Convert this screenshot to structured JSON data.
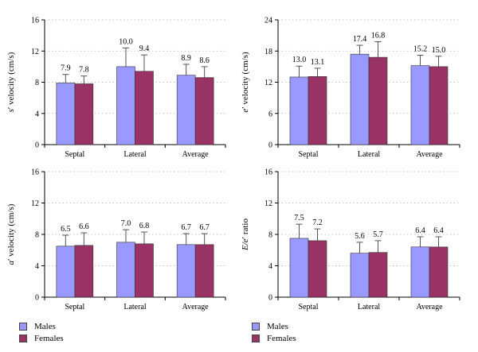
{
  "colors": {
    "males": "#9999ff",
    "females": "#993366",
    "grid": "#b0b0b0",
    "errorbar": "#555555"
  },
  "legend": [
    {
      "label": "Males",
      "color": "#9999ff"
    },
    {
      "label": "Females",
      "color": "#993366"
    }
  ],
  "chart_data": [
    {
      "type": "bar",
      "categories": [
        "Septal",
        "Lateral",
        "Average"
      ],
      "ylabel_parts": [
        "s",
        "′",
        " velocity (cm/s)"
      ],
      "ylim": [
        0,
        16
      ],
      "yticks": [
        0,
        4,
        8,
        12,
        16
      ],
      "grid": true,
      "series": [
        {
          "values": [
            7.9,
            10.0,
            8.9
          ],
          "value_labels": [
            "7.9",
            "10.0",
            "8.9"
          ],
          "errors": [
            1.1,
            2.4,
            1.4
          ]
        },
        {
          "values": [
            7.8,
            9.4,
            8.6
          ],
          "value_labels": [
            "7.8",
            "9.4",
            "8.6"
          ],
          "errors": [
            1.0,
            2.1,
            1.4
          ]
        }
      ]
    },
    {
      "type": "bar",
      "categories": [
        "Septal",
        "Lateral",
        "Average"
      ],
      "ylabel_parts": [
        "e",
        "′",
        " velocity (cm/s)"
      ],
      "ylim": [
        0,
        24
      ],
      "yticks": [
        0,
        6,
        12,
        18,
        24
      ],
      "grid": true,
      "series": [
        {
          "values": [
            13.0,
            17.4,
            15.2
          ],
          "value_labels": [
            "13.0",
            "17.4",
            "15.2"
          ],
          "errors": [
            2.1,
            1.7,
            2.0
          ]
        },
        {
          "values": [
            13.1,
            16.8,
            15.0
          ],
          "value_labels": [
            "13.1",
            "16.8",
            "15.0"
          ],
          "errors": [
            1.6,
            3.0,
            2.0
          ]
        }
      ]
    },
    {
      "type": "bar",
      "categories": [
        "Septal",
        "Lateral",
        "Average"
      ],
      "ylabel_parts": [
        "a",
        "′",
        " velocity (cm/s)"
      ],
      "ylim": [
        0,
        16
      ],
      "yticks": [
        0,
        4,
        8,
        12,
        16
      ],
      "grid": true,
      "series": [
        {
          "values": [
            6.5,
            7.0,
            6.7
          ],
          "value_labels": [
            "6.5",
            "7.0",
            "6.7"
          ],
          "errors": [
            1.4,
            1.6,
            1.4
          ]
        },
        {
          "values": [
            6.6,
            6.8,
            6.7
          ],
          "value_labels": [
            "6.6",
            "6.8",
            "6.7"
          ],
          "errors": [
            1.6,
            1.5,
            1.4
          ]
        }
      ]
    },
    {
      "type": "bar",
      "categories": [
        "Septal",
        "Lateral",
        "Average"
      ],
      "ylabel_parts": [
        "E/e",
        "′",
        " ratio"
      ],
      "ylim": [
        0,
        16
      ],
      "yticks": [
        0,
        4,
        8,
        12,
        16
      ],
      "grid": true,
      "series": [
        {
          "values": [
            7.5,
            5.6,
            6.4
          ],
          "value_labels": [
            "7.5",
            "5.6",
            "6.4"
          ],
          "errors": [
            1.8,
            1.4,
            1.3
          ]
        },
        {
          "values": [
            7.2,
            5.7,
            6.4
          ],
          "value_labels": [
            "7.2",
            "5.7",
            "6.4"
          ],
          "errors": [
            1.5,
            1.5,
            1.3
          ]
        }
      ]
    }
  ]
}
